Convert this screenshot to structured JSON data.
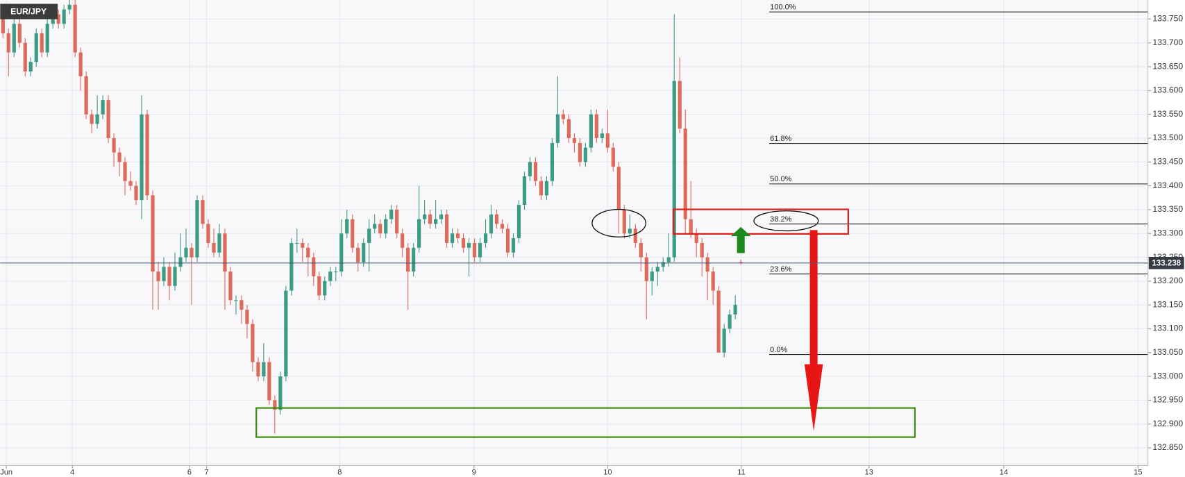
{
  "chart_data": {
    "type": "candlestick",
    "symbol": "EUR/JPY",
    "up_color": "#3d9a83",
    "down_color": "#de6a5c",
    "grid": true,
    "xlim": [
      -0.5,
      206.4
    ],
    "xticks": [
      {
        "value": 0.6,
        "label": "Jun"
      },
      {
        "value": 12.5,
        "label": "4"
      },
      {
        "value": 33.6,
        "label": "6"
      },
      {
        "value": 36.7,
        "label": "7"
      },
      {
        "value": 60.7,
        "label": "8"
      },
      {
        "value": 84.9,
        "label": "9"
      },
      {
        "value": 109,
        "label": "10"
      },
      {
        "value": 133.1,
        "label": "11"
      },
      {
        "value": 156.1,
        "label": "13"
      },
      {
        "value": 180.4,
        "label": "14"
      },
      {
        "value": 204.6,
        "label": "15"
      }
    ],
    "ylim": [
      132.813,
      133.79
    ],
    "yticks": [
      {
        "value": 132.85,
        "label": "132.850"
      },
      {
        "value": 132.9,
        "label": "132.900"
      },
      {
        "value": 132.95,
        "label": "132.950"
      },
      {
        "value": 133,
        "label": "133.000"
      },
      {
        "value": 133.05,
        "label": "133.050"
      },
      {
        "value": 133.1,
        "label": "133.100"
      },
      {
        "value": 133.15,
        "label": "133.150"
      },
      {
        "value": 133.2,
        "label": "133.200"
      },
      {
        "value": 133.25,
        "label": "133.250"
      },
      {
        "value": 133.3,
        "label": "133.300"
      },
      {
        "value": 133.35,
        "label": "133.350"
      },
      {
        "value": 133.4,
        "label": "133.400"
      },
      {
        "value": 133.45,
        "label": "133.450"
      },
      {
        "value": 133.5,
        "label": "133.500"
      },
      {
        "value": 133.55,
        "label": "133.550"
      },
      {
        "value": 133.6,
        "label": "133.600"
      },
      {
        "value": 133.65,
        "label": "133.650"
      },
      {
        "value": 133.7,
        "label": "133.700"
      },
      {
        "value": 133.75,
        "label": "133.750"
      }
    ],
    "last_price": {
      "value": 133.238,
      "label": "133.238"
    },
    "fib_levels": [
      {
        "label": "100.0%",
        "value": 133.765
      },
      {
        "label": "61.8%",
        "value": 133.489
      },
      {
        "label": "50.0%",
        "value": 133.404
      },
      {
        "label": "38.2%",
        "value": 133.32
      },
      {
        "label": "23.6%",
        "value": 133.215
      },
      {
        "label": "0.0%",
        "value": 133.046
      }
    ],
    "candles": [
      [
        133.76,
        133.77,
        133.71,
        133.72
      ],
      [
        133.72,
        133.73,
        133.63,
        133.68
      ],
      [
        133.68,
        133.75,
        133.67,
        133.74
      ],
      [
        133.74,
        133.75,
        133.69,
        133.7
      ],
      [
        133.7,
        133.71,
        133.63,
        133.64
      ],
      [
        133.64,
        133.67,
        133.63,
        133.66
      ],
      [
        133.66,
        133.73,
        133.65,
        133.72
      ],
      [
        133.72,
        133.73,
        133.67,
        133.68
      ],
      [
        133.68,
        133.75,
        133.67,
        133.74
      ],
      [
        133.74,
        133.77,
        133.73,
        133.76
      ],
      [
        133.76,
        133.77,
        133.73,
        133.74
      ],
      [
        133.74,
        133.78,
        133.73,
        133.77
      ],
      [
        133.77,
        133.79,
        133.76,
        133.78
      ],
      [
        133.78,
        133.79,
        133.67,
        133.68
      ],
      [
        133.68,
        133.69,
        133.6,
        133.63
      ],
      [
        133.63,
        133.64,
        133.54,
        133.55
      ],
      [
        133.55,
        133.56,
        133.51,
        133.53
      ],
      [
        133.53,
        133.59,
        133.52,
        133.55
      ],
      [
        133.55,
        133.59,
        133.54,
        133.58
      ],
      [
        133.58,
        133.59,
        133.49,
        133.5
      ],
      [
        133.5,
        133.51,
        133.44,
        133.47
      ],
      [
        133.47,
        133.48,
        133.42,
        133.45
      ],
      [
        133.45,
        133.46,
        133.38,
        133.41
      ],
      [
        133.41,
        133.43,
        133.39,
        133.4
      ],
      [
        133.4,
        133.41,
        133.36,
        133.37
      ],
      [
        133.37,
        133.59,
        133.33,
        133.55
      ],
      [
        133.55,
        133.56,
        133.37,
        133.38
      ],
      [
        133.38,
        133.39,
        133.14,
        133.22
      ],
      [
        133.22,
        133.24,
        133.14,
        133.2
      ],
      [
        133.2,
        133.25,
        133.19,
        133.23
      ],
      [
        133.23,
        133.24,
        133.16,
        133.19
      ],
      [
        133.19,
        133.26,
        133.18,
        133.23
      ],
      [
        133.23,
        133.3,
        133.22,
        133.25
      ],
      [
        133.25,
        133.31,
        133.24,
        133.27
      ],
      [
        133.27,
        133.28,
        133.15,
        133.25
      ],
      [
        133.25,
        133.38,
        133.24,
        133.37
      ],
      [
        133.37,
        133.38,
        133.31,
        133.32
      ],
      [
        133.32,
        133.33,
        133.27,
        133.28
      ],
      [
        133.28,
        133.31,
        133.25,
        133.26
      ],
      [
        133.26,
        133.32,
        133.25,
        133.3
      ],
      [
        133.3,
        133.31,
        133.14,
        133.22
      ],
      [
        133.22,
        133.23,
        133.15,
        133.16
      ],
      [
        133.16,
        133.17,
        133.13,
        133.16
      ],
      [
        133.16,
        133.17,
        133.11,
        133.14
      ],
      [
        133.14,
        133.15,
        133.08,
        133.11
      ],
      [
        133.11,
        133.12,
        133.01,
        133.03
      ],
      [
        133.03,
        133.04,
        132.99,
        133.0
      ],
      [
        133.0,
        133.07,
        132.99,
        133.03
      ],
      [
        133.03,
        133.04,
        132.94,
        132.95
      ],
      [
        132.95,
        132.96,
        132.88,
        132.93
      ],
      [
        132.93,
        133.01,
        132.92,
        133.0
      ],
      [
        133.0,
        133.19,
        132.99,
        133.18
      ],
      [
        133.18,
        133.29,
        133.17,
        133.28
      ],
      [
        133.28,
        133.31,
        133.26,
        133.28
      ],
      [
        133.28,
        133.29,
        133.24,
        133.27
      ],
      [
        133.27,
        133.28,
        133.21,
        133.25
      ],
      [
        133.25,
        133.26,
        133.19,
        133.21
      ],
      [
        133.21,
        133.22,
        133.16,
        133.17
      ],
      [
        133.17,
        133.21,
        133.16,
        133.2
      ],
      [
        133.2,
        133.23,
        133.19,
        133.22
      ],
      [
        133.22,
        133.23,
        133.2,
        133.22
      ],
      [
        133.22,
        133.33,
        133.21,
        133.3
      ],
      [
        133.3,
        133.35,
        133.29,
        133.33
      ],
      [
        133.33,
        133.34,
        133.26,
        133.27
      ],
      [
        133.27,
        133.28,
        133.22,
        133.24
      ],
      [
        133.24,
        133.29,
        133.23,
        133.28
      ],
      [
        133.28,
        133.33,
        133.22,
        133.31
      ],
      [
        133.31,
        133.34,
        133.3,
        133.32
      ],
      [
        133.32,
        133.33,
        133.29,
        133.3
      ],
      [
        133.3,
        133.34,
        133.29,
        133.33
      ],
      [
        133.33,
        133.36,
        133.32,
        133.35
      ],
      [
        133.35,
        133.36,
        133.29,
        133.3
      ],
      [
        133.3,
        133.31,
        133.25,
        133.27
      ],
      [
        133.27,
        133.28,
        133.14,
        133.22
      ],
      [
        133.22,
        133.28,
        133.21,
        133.27
      ],
      [
        133.27,
        133.4,
        133.26,
        133.33
      ],
      [
        133.33,
        133.37,
        133.32,
        133.34
      ],
      [
        133.34,
        133.35,
        133.31,
        133.32
      ],
      [
        133.32,
        133.37,
        133.31,
        133.33
      ],
      [
        133.33,
        133.35,
        133.32,
        133.34
      ],
      [
        133.34,
        133.35,
        133.27,
        133.28
      ],
      [
        133.28,
        133.31,
        133.27,
        133.3
      ],
      [
        133.3,
        133.31,
        133.28,
        133.29
      ],
      [
        133.29,
        133.3,
        133.26,
        133.27
      ],
      [
        133.27,
        133.29,
        133.21,
        133.28
      ],
      [
        133.28,
        133.29,
        133.24,
        133.25
      ],
      [
        133.25,
        133.29,
        133.24,
        133.28
      ],
      [
        133.28,
        133.33,
        133.27,
        133.3
      ],
      [
        133.3,
        133.36,
        133.29,
        133.34
      ],
      [
        133.34,
        133.35,
        133.31,
        133.32
      ],
      [
        133.32,
        133.33,
        133.3,
        133.31
      ],
      [
        133.31,
        133.32,
        133.25,
        133.26
      ],
      [
        133.26,
        133.3,
        133.25,
        133.29
      ],
      [
        133.29,
        133.37,
        133.28,
        133.36
      ],
      [
        133.36,
        133.43,
        133.35,
        133.42
      ],
      [
        133.42,
        133.46,
        133.41,
        133.45
      ],
      [
        133.45,
        133.46,
        133.4,
        133.41
      ],
      [
        133.41,
        133.42,
        133.37,
        133.38
      ],
      [
        133.38,
        133.42,
        133.37,
        133.41
      ],
      [
        133.41,
        133.5,
        133.4,
        133.49
      ],
      [
        133.49,
        133.63,
        133.48,
        133.55
      ],
      [
        133.55,
        133.56,
        133.53,
        133.54
      ],
      [
        133.54,
        133.55,
        133.49,
        133.5
      ],
      [
        133.5,
        133.51,
        133.47,
        133.49
      ],
      [
        133.49,
        133.5,
        133.44,
        133.45
      ],
      [
        133.45,
        133.49,
        133.44,
        133.48
      ],
      [
        133.48,
        133.56,
        133.47,
        133.55
      ],
      [
        133.55,
        133.56,
        133.49,
        133.5
      ],
      [
        133.5,
        133.52,
        133.49,
        133.51
      ],
      [
        133.51,
        133.56,
        133.47,
        133.48
      ],
      [
        133.48,
        133.49,
        133.43,
        133.44
      ],
      [
        133.44,
        133.45,
        133.3,
        133.35
      ],
      [
        133.35,
        133.36,
        133.29,
        133.3
      ],
      [
        133.3,
        133.34,
        133.29,
        133.31
      ],
      [
        133.31,
        133.32,
        133.27,
        133.28
      ],
      [
        133.28,
        133.29,
        133.22,
        133.25
      ],
      [
        133.25,
        133.26,
        133.12,
        133.2
      ],
      [
        133.2,
        133.23,
        133.17,
        133.22
      ],
      [
        133.22,
        133.24,
        133.19,
        133.23
      ],
      [
        133.23,
        133.25,
        133.22,
        133.24
      ],
      [
        133.24,
        133.3,
        133.23,
        133.25
      ],
      [
        133.25,
        133.76,
        133.24,
        133.62
      ],
      [
        133.62,
        133.67,
        133.51,
        133.52
      ],
      [
        133.52,
        133.56,
        133.3,
        133.33
      ],
      [
        133.33,
        133.41,
        133.29,
        133.3
      ],
      [
        133.3,
        133.31,
        133.25,
        133.28
      ],
      [
        133.28,
        133.29,
        133.21,
        133.25
      ],
      [
        133.25,
        133.26,
        133.16,
        133.22
      ],
      [
        133.22,
        133.23,
        133.15,
        133.18
      ],
      [
        133.18,
        133.19,
        133.05,
        133.05
      ],
      [
        133.05,
        133.11,
        133.04,
        133.1
      ],
      [
        133.1,
        133.14,
        133.09,
        133.13
      ],
      [
        133.13,
        133.17,
        133.12,
        133.15
      ],
      [
        133.24,
        133.245,
        133.235,
        133.238
      ]
    ]
  }
}
